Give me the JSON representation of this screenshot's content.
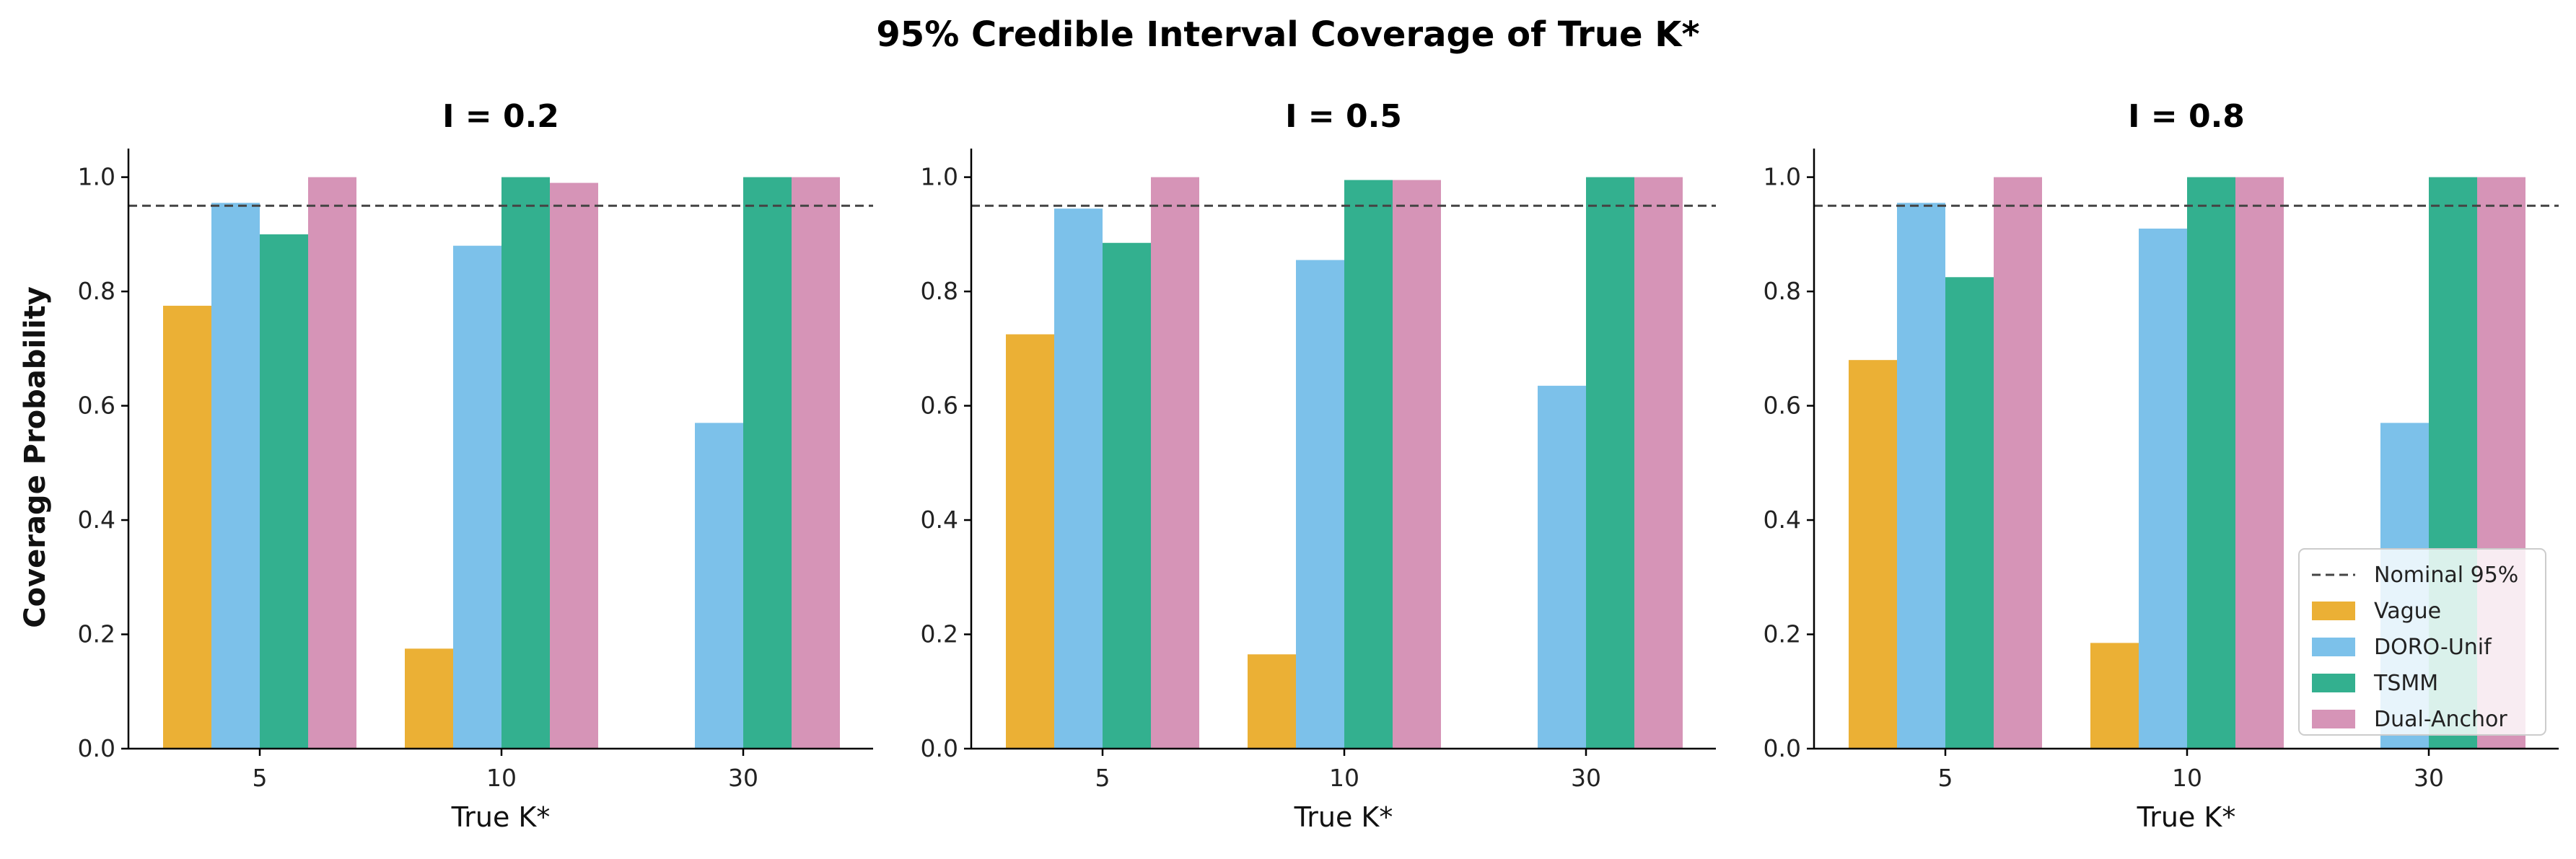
{
  "chart_data": {
    "type": "bar",
    "title": "95% Credible Interval Coverage of True K*",
    "ylabel": "Coverage Probability",
    "xlabel": "True K*",
    "categories": [
      "5",
      "10",
      "30"
    ],
    "ylim": [
      0,
      1.05
    ],
    "yticks": [
      "0.0",
      "0.2",
      "0.4",
      "0.6",
      "0.8",
      "1.0"
    ],
    "reference_line": {
      "label": "Nominal 95%",
      "value": 0.95,
      "style": "dashed",
      "color": "#444444"
    },
    "legend": {
      "location": "lower-right",
      "panel": 2
    },
    "series_styles": [
      {
        "name": "Vague",
        "color": "#EBB035"
      },
      {
        "name": "DORO-Unif",
        "color": "#7CC1EA"
      },
      {
        "name": "TSMM",
        "color": "#33B08F"
      },
      {
        "name": "Dual-Anchor",
        "color": "#D694B7"
      }
    ],
    "panels": [
      {
        "title": "I = 0.2",
        "series": [
          {
            "name": "Vague",
            "values": [
              0.775,
              0.175,
              0.0
            ]
          },
          {
            "name": "DORO-Unif",
            "values": [
              0.955,
              0.88,
              0.57
            ]
          },
          {
            "name": "TSMM",
            "values": [
              0.9,
              1.0,
              1.0
            ]
          },
          {
            "name": "Dual-Anchor",
            "values": [
              1.0,
              0.99,
              1.0
            ]
          }
        ]
      },
      {
        "title": "I = 0.5",
        "series": [
          {
            "name": "Vague",
            "values": [
              0.725,
              0.165,
              0.0
            ]
          },
          {
            "name": "DORO-Unif",
            "values": [
              0.945,
              0.855,
              0.635
            ]
          },
          {
            "name": "TSMM",
            "values": [
              0.885,
              0.995,
              1.0
            ]
          },
          {
            "name": "Dual-Anchor",
            "values": [
              1.0,
              0.995,
              1.0
            ]
          }
        ]
      },
      {
        "title": "I = 0.8",
        "series": [
          {
            "name": "Vague",
            "values": [
              0.68,
              0.185,
              0.0
            ]
          },
          {
            "name": "DORO-Unif",
            "values": [
              0.955,
              0.91,
              0.57
            ]
          },
          {
            "name": "TSMM",
            "values": [
              0.825,
              1.0,
              1.0
            ]
          },
          {
            "name": "Dual-Anchor",
            "values": [
              1.0,
              1.0,
              1.0
            ]
          }
        ]
      }
    ]
  }
}
